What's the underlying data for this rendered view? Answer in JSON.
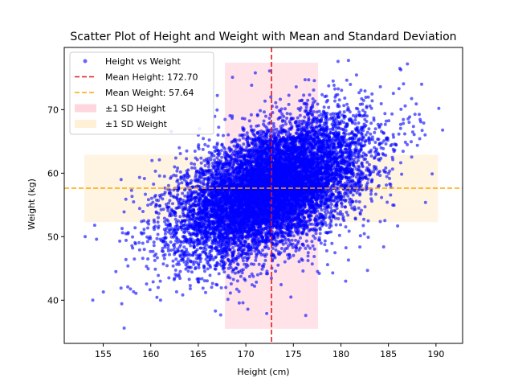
{
  "chart_data": {
    "type": "scatter",
    "title": "Scatter Plot of Height and Weight with Mean and Standard Deviation",
    "xlabel": "Height (cm)",
    "ylabel": "Weight (kg)",
    "xlim": [
      150.9,
      192.8
    ],
    "ylim": [
      33.2,
      79.8
    ],
    "xticks": [
      155,
      160,
      165,
      170,
      175,
      180,
      185,
      190
    ],
    "yticks": [
      40,
      50,
      60,
      70
    ],
    "grid": false,
    "legend_position": "top-left",
    "series": [
      {
        "name": "Height vs Weight",
        "kind": "points",
        "color": "#0000ff",
        "alpha": 0.6,
        "cloud": {
          "n": 10000,
          "x_mean": 172.7,
          "x_sd": 4.9,
          "y_mean": 57.64,
          "y_sd": 5.3,
          "correlation": 0.5,
          "x_range": [
            153.0,
            190.3
          ],
          "y_range": [
            35.5,
            77.9
          ]
        },
        "points": [
          [
            153.1,
            50.0
          ],
          [
            154.1,
            51.8
          ],
          [
            154.3,
            49.6
          ],
          [
            153.9,
            40.0
          ],
          [
            157.2,
            35.6
          ],
          [
            157.6,
            45.4
          ],
          [
            160.8,
            55.7
          ],
          [
            163.0,
            64.0
          ],
          [
            165.0,
            66.0
          ],
          [
            168.6,
            75.1
          ],
          [
            171.0,
            75.8
          ],
          [
            172.5,
            76.1
          ],
          [
            175.3,
            73.6
          ],
          [
            179.7,
            77.6
          ],
          [
            186.2,
            76.5
          ],
          [
            187.0,
            77.2
          ],
          [
            190.3,
            70.2
          ],
          [
            190.7,
            66.8
          ],
          [
            189.6,
            59.9
          ],
          [
            188.9,
            55.4
          ],
          [
            184.5,
            48.4
          ],
          [
            182.8,
            44.7
          ],
          [
            178.6,
            45.6
          ],
          [
            176.3,
            37.6
          ],
          [
            172.2,
            37.9
          ],
          [
            169.7,
            39.6
          ],
          [
            167.9,
            42.0
          ],
          [
            166.8,
            38.3
          ],
          [
            161.0,
            43.0
          ],
          [
            162.5,
            61.0
          ],
          [
            185.8,
            64.5
          ],
          [
            180.5,
            43.0
          ]
        ]
      },
      {
        "name": "Mean Height: 172.70",
        "kind": "vline",
        "value": 172.7,
        "color": "#e31a1c",
        "dash": "dashed"
      },
      {
        "name": "Mean Weight: 57.64",
        "kind": "hline",
        "value": 57.64,
        "color": "#ffa500",
        "dash": "dashed"
      },
      {
        "name": "±1 SD Height",
        "kind": "vspan",
        "x_range": [
          167.8,
          177.6
        ],
        "y_range": [
          35.5,
          77.4
        ],
        "color": "#ffc0cb",
        "alpha": 0.45
      },
      {
        "name": "±1 SD Weight",
        "kind": "hspan",
        "x_range": [
          153.0,
          190.2
        ],
        "y_range": [
          52.3,
          62.9
        ],
        "color": "#ffebc8",
        "alpha": 0.55
      }
    ]
  }
}
